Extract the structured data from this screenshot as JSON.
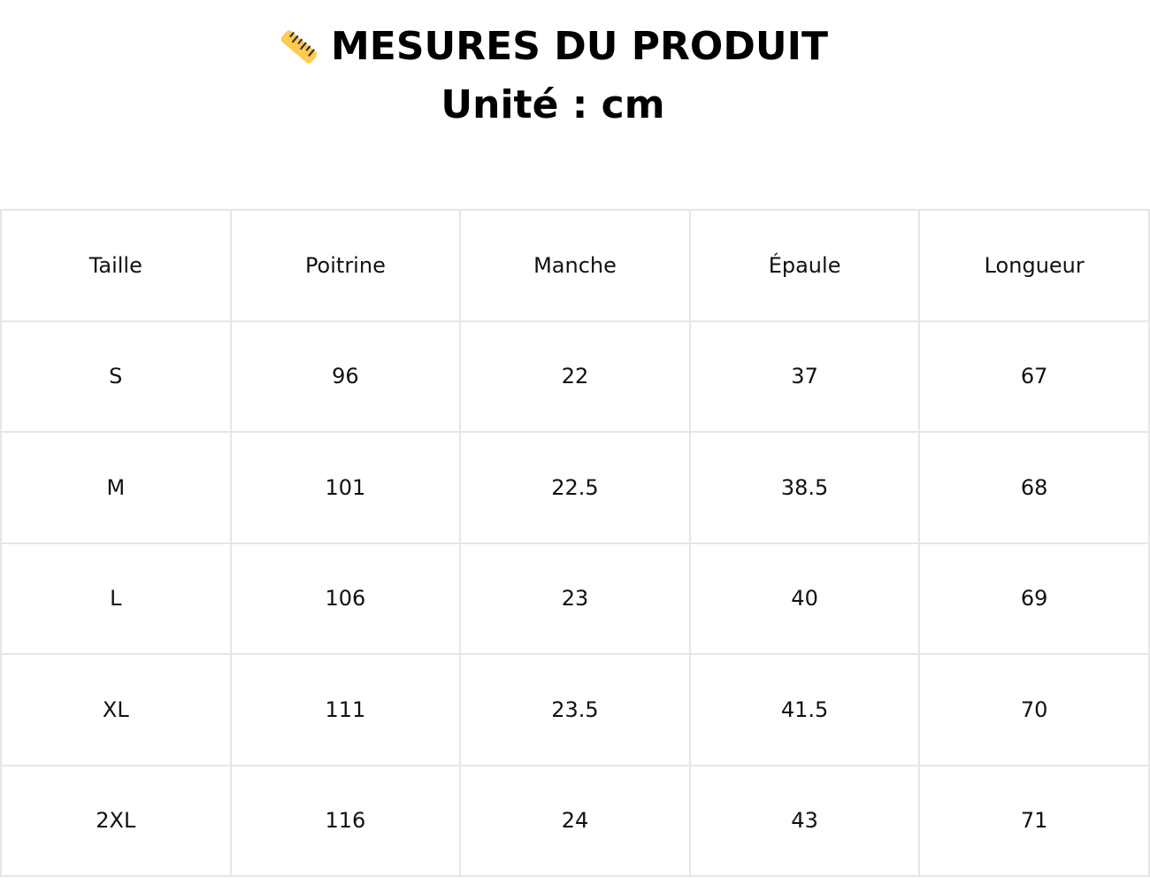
{
  "header": {
    "icon": "ruler-icon",
    "title": "MESURES DU PRODUIT",
    "subtitle": "Unité : cm"
  },
  "table": {
    "columns": [
      "Taille",
      "Poitrine",
      "Manche",
      "Épaule",
      "Longueur"
    ],
    "rows": [
      [
        "S",
        "96",
        "22",
        "37",
        "67"
      ],
      [
        "M",
        "101",
        "22.5",
        "38.5",
        "68"
      ],
      [
        "L",
        "106",
        "23",
        "40",
        "69"
      ],
      [
        "XL",
        "111",
        "23.5",
        "41.5",
        "70"
      ],
      [
        "2XL",
        "116",
        "24",
        "43",
        "71"
      ]
    ]
  },
  "colors": {
    "icon_fill": "#FFCA4F",
    "grid": "#e6e6e6"
  }
}
